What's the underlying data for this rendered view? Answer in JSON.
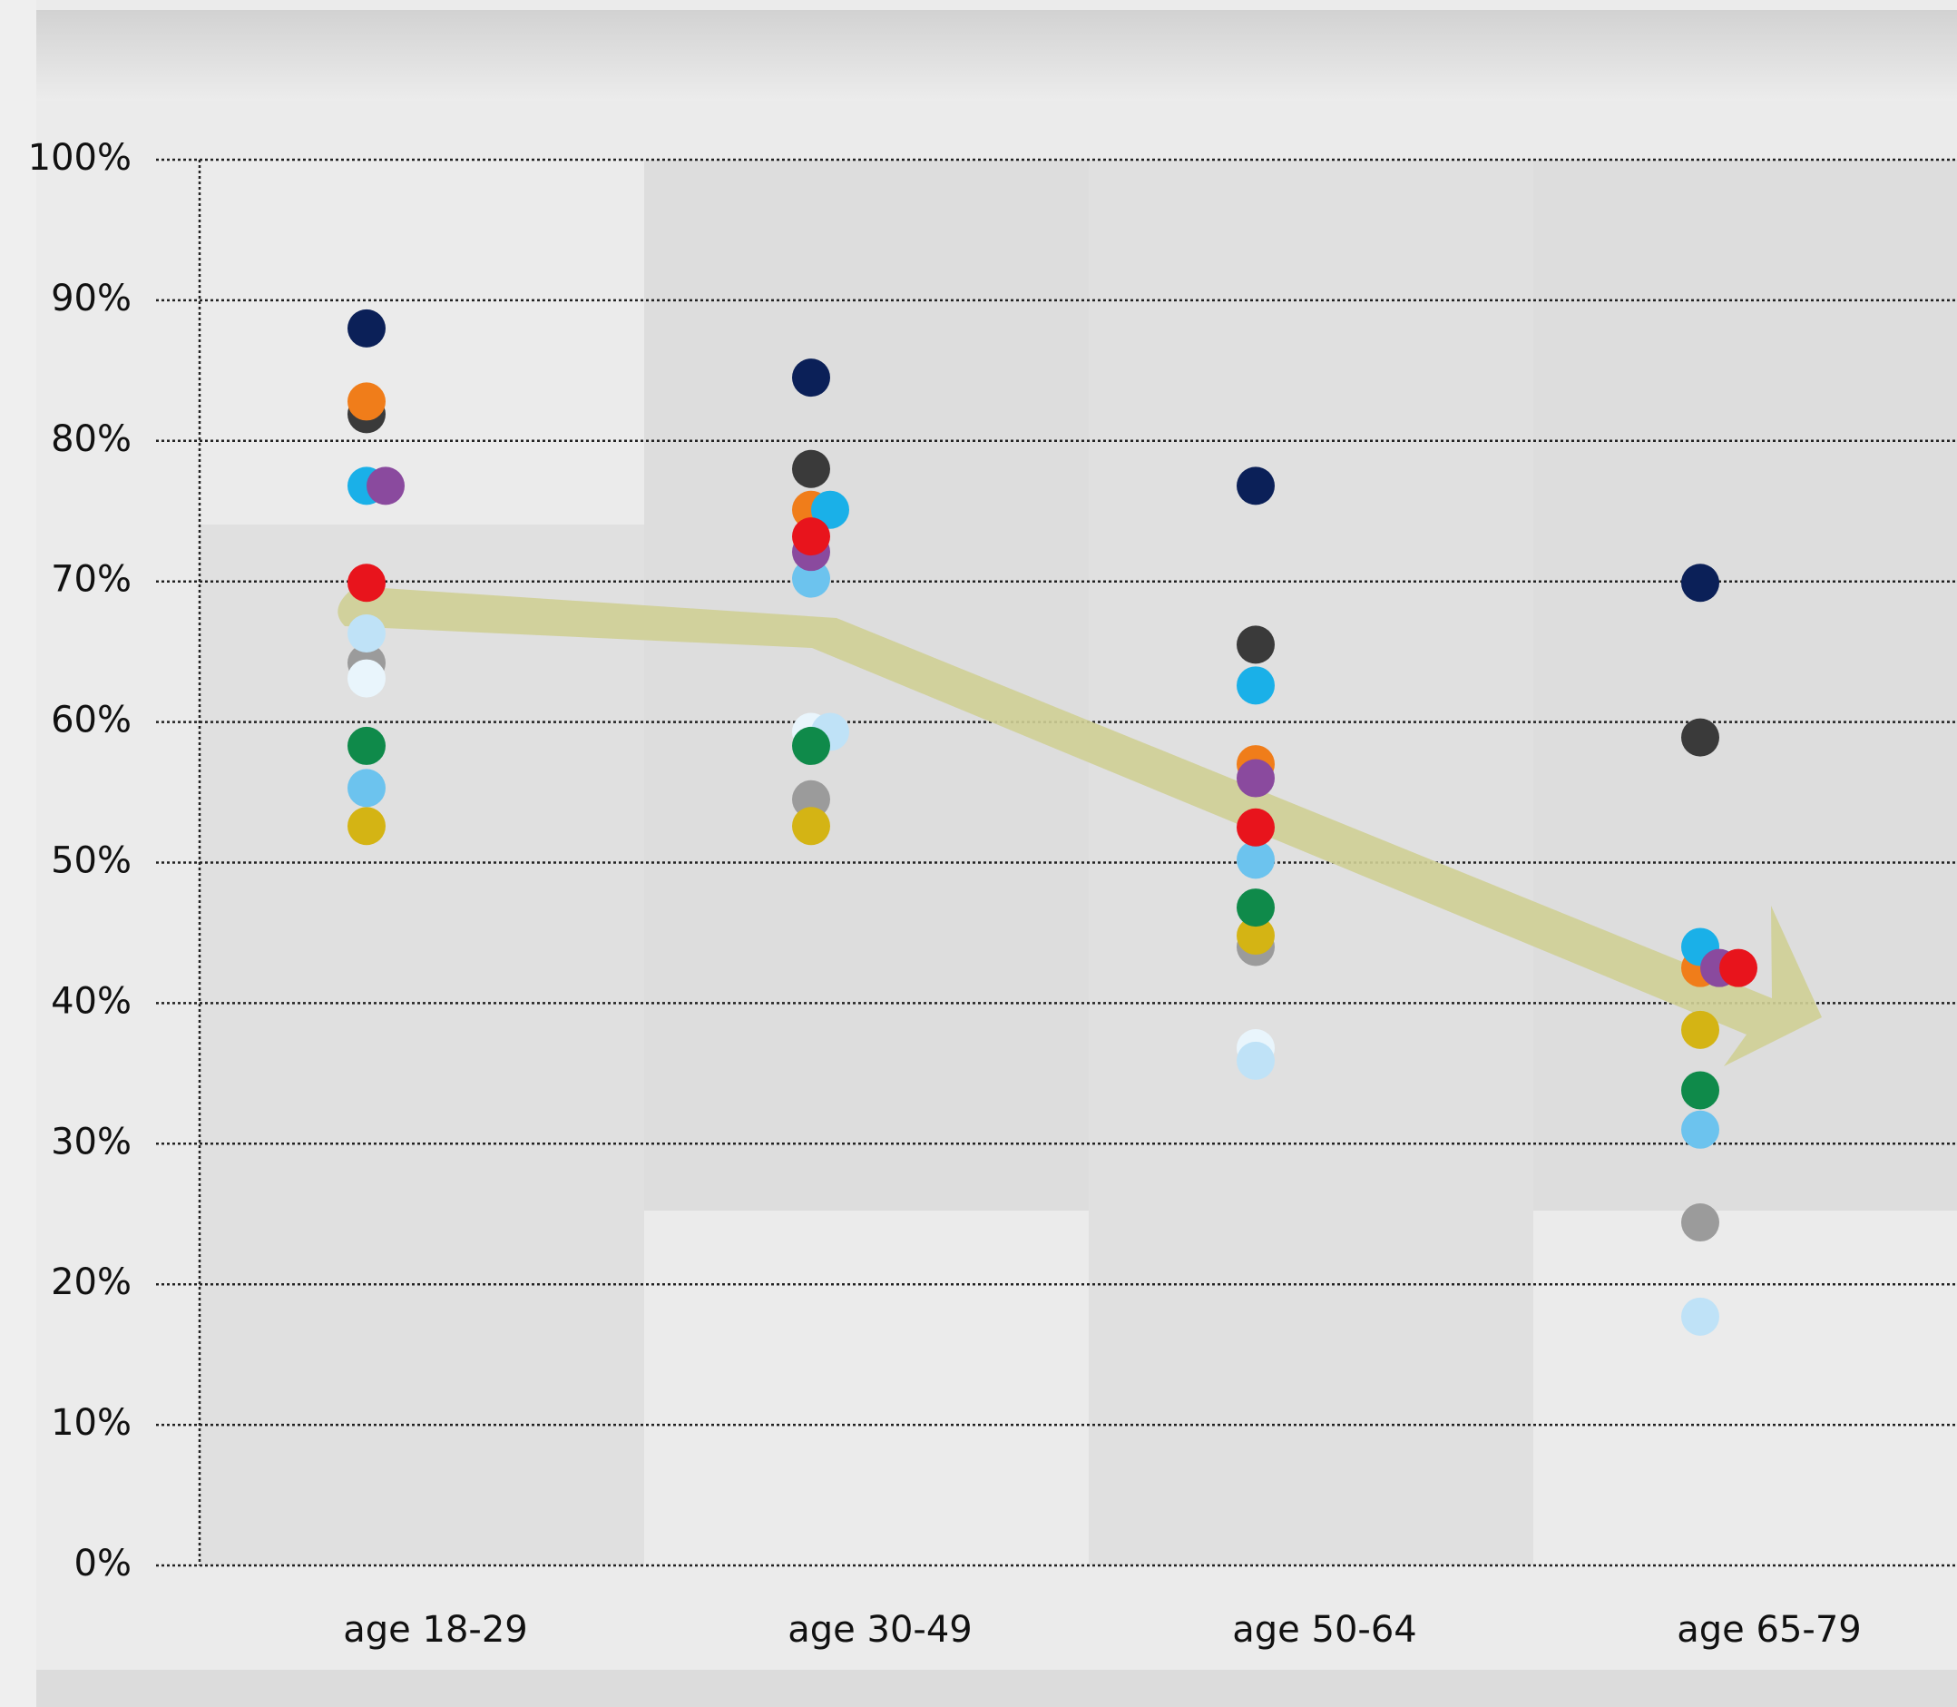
{
  "chart_data": {
    "type": "dot",
    "categories": [
      "age 18-29",
      "age 30-49",
      "age 50-64",
      "age 65-79"
    ],
    "ylim": [
      0,
      100
    ],
    "yticks": [
      {
        "value": 0,
        "label": "0%"
      },
      {
        "value": 10,
        "label": "10%"
      },
      {
        "value": 20,
        "label": "20%"
      },
      {
        "value": 30,
        "label": "30%"
      },
      {
        "value": 40,
        "label": "40%"
      },
      {
        "value": 50,
        "label": "50%"
      },
      {
        "value": 60,
        "label": "60%"
      },
      {
        "value": 70,
        "label": "70%"
      },
      {
        "value": 80,
        "label": "80%"
      },
      {
        "value": 90,
        "label": "90%"
      },
      {
        "value": 100,
        "label": "100%"
      }
    ],
    "grid": true,
    "series": [
      {
        "color": "#9b9b9b",
        "values": [
          64.2,
          54.5,
          44.0,
          24.4
        ]
      },
      {
        "color": "#e9f5fc",
        "values": [
          63.1,
          59.3,
          36.8,
          null
        ]
      },
      {
        "color": "#bfe2f7",
        "values": [
          66.3,
          59.3,
          35.9,
          17.7
        ]
      },
      {
        "color": "#d4b414",
        "values": [
          52.6,
          52.6,
          44.8,
          38.1
        ]
      },
      {
        "color": "#0f8a4a",
        "values": [
          58.3,
          58.3,
          46.8,
          33.8
        ]
      },
      {
        "color": "#6cc3ee",
        "values": [
          55.3,
          70.2,
          50.2,
          31.0
        ]
      },
      {
        "color": "#3a3a3a",
        "values": [
          81.9,
          78.0,
          65.5,
          58.9
        ]
      },
      {
        "color": "#f07d1a",
        "values": [
          82.8,
          75.1,
          57.0,
          42.5
        ]
      },
      {
        "color": "#1ab0e8",
        "values": [
          76.8,
          75.1,
          62.6,
          44.0
        ]
      },
      {
        "color": "#8a4a9e",
        "values": [
          76.8,
          72.1,
          56.0,
          42.5
        ]
      },
      {
        "color": "#e8141c",
        "values": [
          69.9,
          73.2,
          52.5,
          42.5
        ]
      },
      {
        "color": "#0b2058",
        "values": [
          88.0,
          84.5,
          76.8,
          69.9
        ]
      }
    ]
  }
}
